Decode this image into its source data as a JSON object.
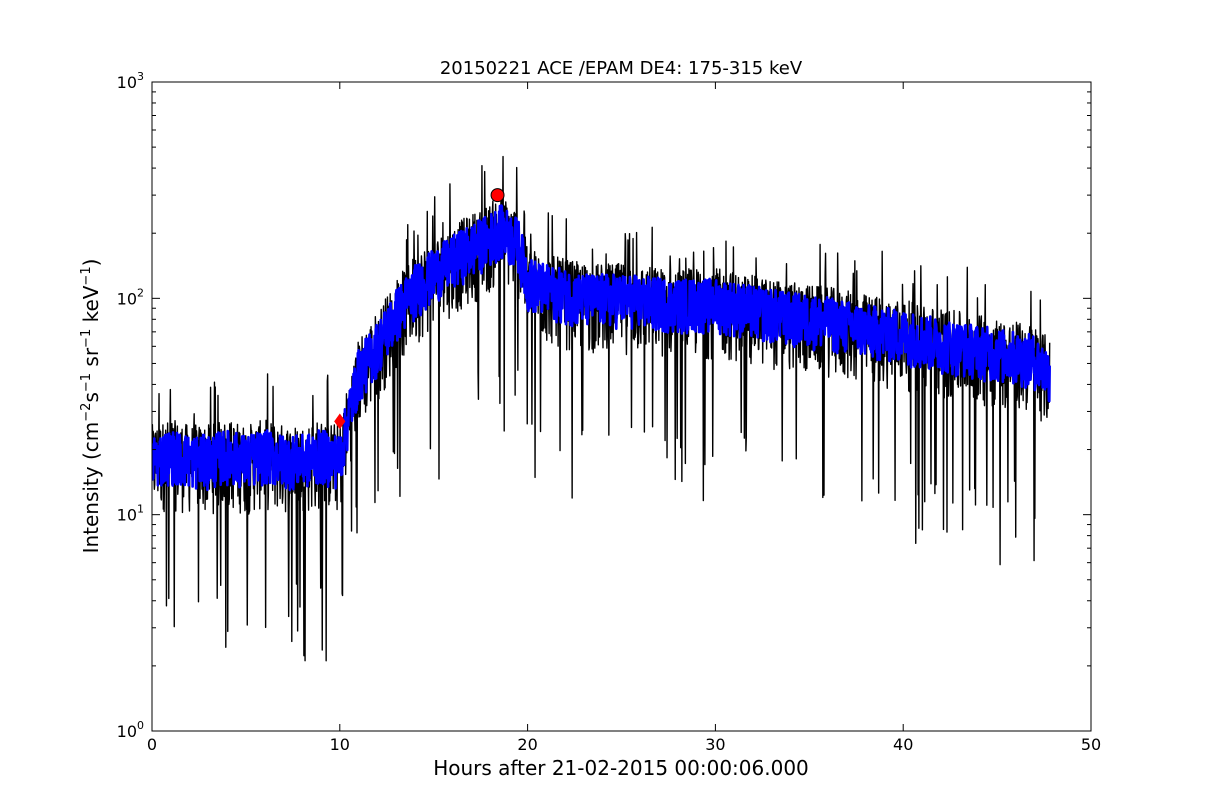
{
  "chart_data": {
    "type": "line",
    "title": "20150221 ACE /EPAM DE4: 175-315 keV",
    "xlabel": "Hours after 21-02-2015 00:00:06.000",
    "ylabel_parts": {
      "prefix": "Intensity (cm",
      "exp1": "−2",
      "s": "s",
      "exp2": "−1",
      "sr": " sr",
      "exp3": "−1",
      "kev": " keV",
      "exp4": "−1",
      "suffix": ")"
    },
    "xlim": [
      0,
      50
    ],
    "ylim": [
      1,
      1000
    ],
    "yscale": "log",
    "grid": false,
    "x_ticks": [
      0,
      10,
      20,
      30,
      40,
      50
    ],
    "x_tick_labels": [
      "0",
      "10",
      "20",
      "30",
      "40",
      "50"
    ],
    "y_ticks": [
      1,
      10,
      100,
      1000
    ],
    "y_tick_labels": [
      {
        "base": "10",
        "exp": "0"
      },
      {
        "base": "10",
        "exp": "1"
      },
      {
        "base": "10",
        "exp": "2"
      },
      {
        "base": "10",
        "exp": "3"
      }
    ],
    "series": [
      {
        "color": "#000000",
        "style": "raw",
        "x": [
          0,
          1,
          2,
          3,
          4,
          5,
          6,
          7,
          8,
          9,
          10,
          10.5,
          11,
          12,
          13,
          14,
          15,
          16,
          17,
          18,
          18.5,
          19,
          19.5,
          20,
          21,
          22,
          23,
          24,
          25,
          26,
          27,
          28,
          29,
          30,
          31,
          32,
          33,
          34,
          35,
          36,
          37,
          38,
          39,
          40,
          41,
          42,
          43,
          44,
          45,
          46,
          47,
          47.8
        ],
        "y": [
          18,
          19,
          18,
          18,
          19,
          18,
          19,
          18,
          18,
          19,
          18,
          30,
          45,
          60,
          85,
          110,
          130,
          150,
          170,
          190,
          210,
          195,
          180,
          120,
          110,
          105,
          100,
          100,
          100,
          98,
          96,
          95,
          95,
          95,
          92,
          88,
          85,
          82,
          80,
          78,
          75,
          72,
          70,
          68,
          65,
          62,
          60,
          58,
          56,
          54,
          52,
          45
        ],
        "spread_low": 0.35,
        "spread_high": 1.6
      },
      {
        "color": "#0000ff",
        "style": "smoothed",
        "x": [
          0,
          1,
          2,
          3,
          4,
          5,
          6,
          7,
          8,
          9,
          10,
          10.5,
          11,
          12,
          13,
          14,
          15,
          16,
          17,
          18,
          18.5,
          19,
          19.5,
          20,
          21,
          22,
          23,
          24,
          25,
          26,
          27,
          28,
          29,
          30,
          31,
          32,
          33,
          34,
          35,
          36,
          37,
          38,
          39,
          40,
          41,
          42,
          43,
          44,
          45,
          46,
          47,
          47.8
        ],
        "y": [
          18,
          19,
          18,
          18,
          19,
          18,
          19,
          18,
          18,
          19,
          18,
          30,
          45,
          60,
          85,
          110,
          130,
          150,
          170,
          190,
          210,
          195,
          180,
          120,
          110,
          105,
          100,
          100,
          100,
          98,
          96,
          95,
          95,
          95,
          92,
          88,
          85,
          82,
          80,
          78,
          75,
          72,
          70,
          68,
          65,
          62,
          60,
          58,
          56,
          54,
          52,
          45
        ]
      }
    ],
    "markers": [
      {
        "shape": "circle",
        "x": 18.4,
        "y": 300,
        "color": "#ff0000"
      },
      {
        "shape": "diamond",
        "x": 10.0,
        "y": 27,
        "color": "#ff0000"
      }
    ]
  }
}
